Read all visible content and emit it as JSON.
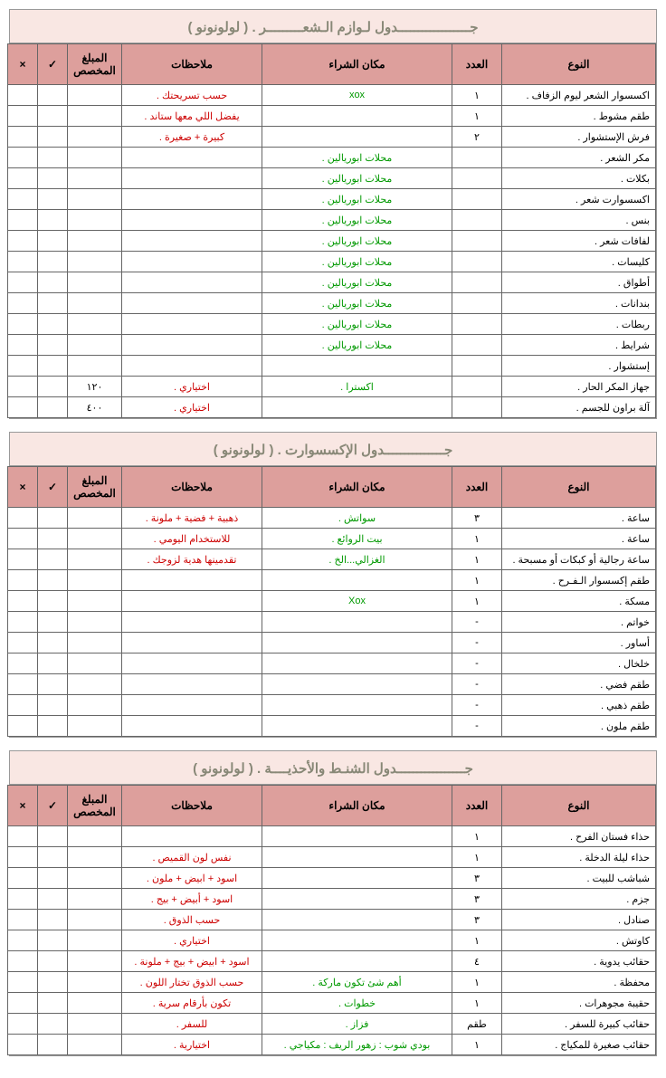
{
  "sections": [
    {
      "title": "جــــــــــــــــــدول لـوازم الـشعـــــــــر .  ( لولونونو )",
      "headers": [
        "النوع",
        "العدد",
        "مكان الشراء",
        "ملاحظات",
        "المبلغ المخصص",
        "✓",
        "×"
      ],
      "rows": [
        {
          "type": "اكسسوار الشعر ليوم الزفاف .",
          "count": "١",
          "place": "xox",
          "place_cls": "green",
          "notes": "حسب تسريحتك .",
          "notes_cls": "red"
        },
        {
          "type": "طقم مشوط .",
          "count": "١",
          "place": "",
          "notes": "يفضل اللي معها ستاند .",
          "notes_cls": "red"
        },
        {
          "type": "فرش الإستشوار .",
          "count": "٢",
          "place": "",
          "notes": "كبيرة + صغيرة .",
          "notes_cls": "red"
        },
        {
          "type": "مكر الشعر .",
          "count": "",
          "place": "محلات ابوريالين .",
          "place_cls": "green",
          "notes": ""
        },
        {
          "type": "بكلات .",
          "count": "",
          "place": "محلات ابوريالين .",
          "place_cls": "green",
          "notes": ""
        },
        {
          "type": "اكسسوارت شعر .",
          "count": "",
          "place": "محلات ابوريالين .",
          "place_cls": "green",
          "notes": ""
        },
        {
          "type": "بنس .",
          "count": "",
          "place": "محلات ابوريالين .",
          "place_cls": "green",
          "notes": ""
        },
        {
          "type": "لفافات شعر .",
          "count": "",
          "place": "محلات ابوريالين .",
          "place_cls": "green",
          "notes": ""
        },
        {
          "type": "كليسات .",
          "count": "",
          "place": "محلات ابوريالين .",
          "place_cls": "green",
          "notes": ""
        },
        {
          "type": "أطواق .",
          "count": "",
          "place": "محلات ابوريالين .",
          "place_cls": "green",
          "notes": ""
        },
        {
          "type": "بندانات .",
          "count": "",
          "place": "محلات ابوريالين .",
          "place_cls": "green",
          "notes": ""
        },
        {
          "type": "ربطات .",
          "count": "",
          "place": "محلات ابوريالين .",
          "place_cls": "green",
          "notes": ""
        },
        {
          "type": "شرايط .",
          "count": "",
          "place": "محلات ابوريالين .",
          "place_cls": "green",
          "notes": ""
        },
        {
          "type": "إستشوار .",
          "count": "",
          "place": "",
          "notes": ""
        },
        {
          "type": "جهاز المكر الحار .",
          "count": "",
          "place": "اكسترا .",
          "place_cls": "green",
          "notes": "اختياري .",
          "notes_cls": "red",
          "budget": "١٢٠"
        },
        {
          "type": "آلة براون للجسم .",
          "count": "",
          "place": "",
          "notes": "اختياري .",
          "notes_cls": "red",
          "budget": "٤٠٠"
        }
      ]
    },
    {
      "title": "جـــــــــــــــدول الإكسسوارت .  ( لولونونو )",
      "headers": [
        "النوع",
        "العدد",
        "مكان الشراء",
        "ملاحظات",
        "المبلغ المخصص",
        "✓",
        "×"
      ],
      "rows": [
        {
          "type": "ساعة .",
          "count": "٣",
          "place": "سواتش .",
          "place_cls": "green",
          "notes": "ذهبية + فضية + ملونة .",
          "notes_cls": "red"
        },
        {
          "type": "ساعة .",
          "count": "١",
          "place": "بيت الروائع .",
          "place_cls": "green",
          "notes": "للاستخدام اليومي .",
          "notes_cls": "red"
        },
        {
          "type": "ساعة رجالية أو كبكات أو مسبحة .",
          "count": "١",
          "place": "الغزالي...الخ .",
          "place_cls": "green",
          "notes": "تقدمينها هدية لزوجك .",
          "notes_cls": "red"
        },
        {
          "type": "طقم إكسسوار الـفـرح .",
          "count": "١",
          "place": "",
          "notes": ""
        },
        {
          "type": "مسكة .",
          "count": "١",
          "place": "Xox",
          "place_cls": "green",
          "notes": ""
        },
        {
          "type": "خواتم .",
          "count": "-",
          "place": "",
          "notes": ""
        },
        {
          "type": "أساور .",
          "count": "-",
          "place": "",
          "notes": ""
        },
        {
          "type": "خلخال .",
          "count": "-",
          "place": "",
          "notes": ""
        },
        {
          "type": "طقم فضي .",
          "count": "-",
          "place": "",
          "notes": ""
        },
        {
          "type": "طقم ذهبي .",
          "count": "-",
          "place": "",
          "notes": ""
        },
        {
          "type": "طقم ملون .",
          "count": "-",
          "place": "",
          "notes": ""
        }
      ]
    },
    {
      "title": "جـــــــــــــــــدول الشنـط والأحذيــــة .  ( لولونونو )",
      "headers": [
        "النوع",
        "العدد",
        "مكان الشراء",
        "ملاحظات",
        "المبلغ المخصص",
        "✓",
        "×"
      ],
      "rows": [
        {
          "type": "حذاء فستان الفرح .",
          "count": "١",
          "place": "",
          "notes": ""
        },
        {
          "type": "حذاء ليلة الدخلة .",
          "count": "١",
          "place": "",
          "notes": "نفس لون القميص .",
          "notes_cls": "red"
        },
        {
          "type": "شباشب للبيت .",
          "count": "٣",
          "place": "",
          "notes": "اسود + ابيض + ملون .",
          "notes_cls": "red"
        },
        {
          "type": "جزم .",
          "count": "٣",
          "place": "",
          "notes": "اسود + أبيض + بيج .",
          "notes_cls": "red"
        },
        {
          "type": "صنادل .",
          "count": "٣",
          "place": "",
          "notes": "حسب الذوق .",
          "notes_cls": "red"
        },
        {
          "type": "كاوتش .",
          "count": "١",
          "place": "",
          "notes": "اختياري .",
          "notes_cls": "red"
        },
        {
          "type": "حقائب يدوية .",
          "count": "٤",
          "place": "",
          "notes": "اسود + ابيض + بيج + ملونة .",
          "notes_cls": "red"
        },
        {
          "type": "محفظة .",
          "count": "١",
          "place": "أهم شئ تكون ماركة .",
          "place_cls": "green",
          "notes": "حسب الذوق تختار اللون .",
          "notes_cls": "red"
        },
        {
          "type": "حقيبة مجوهرات .",
          "count": "١",
          "place": "خطوات .",
          "place_cls": "green",
          "notes": "تكون بأرقام سرية .",
          "notes_cls": "red"
        },
        {
          "type": "حقائب كبيرة للسفر .",
          "count": "طقم",
          "place": "فزاز .",
          "place_cls": "green",
          "notes": "للسفر .",
          "notes_cls": "red"
        },
        {
          "type": "حقائب صغيرة للمكياج .",
          "count": "١",
          "place": "بودي شوب : زهور الريف : مكياجي .",
          "place_cls": "green",
          "notes": "اختيارية .",
          "notes_cls": "red"
        }
      ]
    }
  ]
}
